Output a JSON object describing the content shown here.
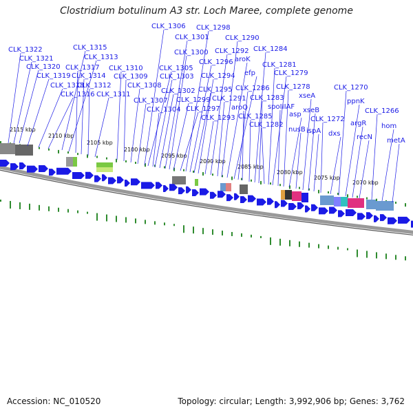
{
  "title": "Clostridium botulinum A3 str. Loch Maree, complete genome",
  "accession": "Accession: NC_010520",
  "topology": "Topology: circular; Length: 3,992,906 bp; Genes: 3,762",
  "colors": {
    "gene": "#1a1ae6",
    "label": "#1a1ae6",
    "backbone": "#8a8a8a",
    "gc_skew": "#2e8b2e"
  },
  "kbp_ticks": [
    "2115 kbp",
    "2110 kbp",
    "2105 kbp",
    "2100 kbp",
    "2095 kbp",
    "2090 kbp",
    "2085 kbp",
    "2080 kbp",
    "2075 kbp",
    "2070 kbp"
  ],
  "gene_labels": [
    "CLK_1322",
    "CLK_1321",
    "CLK_1320",
    "CLK_1319",
    "CLK_1318",
    "CLK_1316",
    "CLK_1315",
    "CLK_1313",
    "CLK_1317",
    "CLK_1314",
    "CLK_1312",
    "CLK_1311",
    "CLK_1310",
    "CLK_1309",
    "CLK_1308",
    "CLK_1307",
    "CLK_1306",
    "CLK_1305",
    "CLK_1303",
    "CLK_1302",
    "CLK_1304",
    "CLK_1301",
    "CLK_1300",
    "CLK_1299",
    "CLK_1297",
    "CLK_1298",
    "CLK_1296",
    "CLK_1295",
    "CLK_1294",
    "CLK_1293",
    "CLK_1292",
    "CLK_1291",
    "CLK_1290",
    "aroK",
    "efp",
    "CLK_1286",
    "aroQ",
    "CLK_1285",
    "CLK_1284",
    "CLK_1283",
    "CLK_1282",
    "CLK_1281",
    "CLK_1279",
    "spoIIIAF",
    "CLK_1278",
    "asp",
    "nusB",
    "xseA",
    "xseB",
    "ispA",
    "CLK_1272",
    "dxs",
    "CLK_1270",
    "ppnK",
    "argR",
    "recN",
    "CLK_1266",
    "hom",
    "metA"
  ]
}
